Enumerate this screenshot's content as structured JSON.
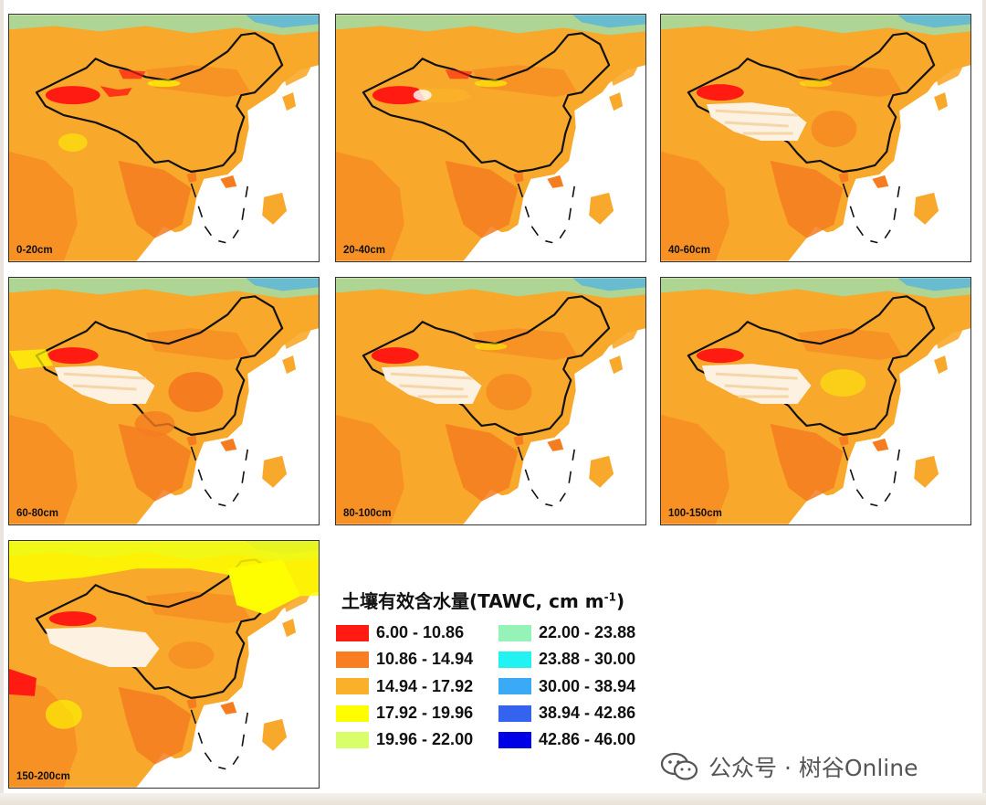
{
  "panels": [
    {
      "label": "0-20cm"
    },
    {
      "label": "20-40cm"
    },
    {
      "label": "40-60cm"
    },
    {
      "label": "60-80cm"
    },
    {
      "label": "80-100cm"
    },
    {
      "label": "100-150cm"
    },
    {
      "label": "150-200cm"
    }
  ],
  "legend": {
    "title_main": "土壤有效含水量(TAWC, cm m",
    "title_sup": "-1",
    "title_end": ")",
    "items": [
      {
        "range": "6.00 - 10.86",
        "color": "#ff1a12"
      },
      {
        "range": "10.86 - 14.94",
        "color": "#f97e22"
      },
      {
        "range": "14.94 - 17.92",
        "color": "#fbb02a"
      },
      {
        "range": "17.92 - 19.96",
        "color": "#fefe00"
      },
      {
        "range": "19.96 - 22.00",
        "color": "#d8ff6a"
      },
      {
        "range": "22.00 - 23.88",
        "color": "#96f3b8"
      },
      {
        "range": "23.88 - 30.00",
        "color": "#22f2f2"
      },
      {
        "range": "30.00 - 38.94",
        "color": "#3aaaf6"
      },
      {
        "range": "38.94 - 42.86",
        "color": "#3464ef"
      },
      {
        "range": "42.86 - 46.00",
        "color": "#0000e6"
      }
    ]
  },
  "watermark": {
    "text": "公众号 · 树谷Online",
    "icon": "wechat-icon"
  }
}
